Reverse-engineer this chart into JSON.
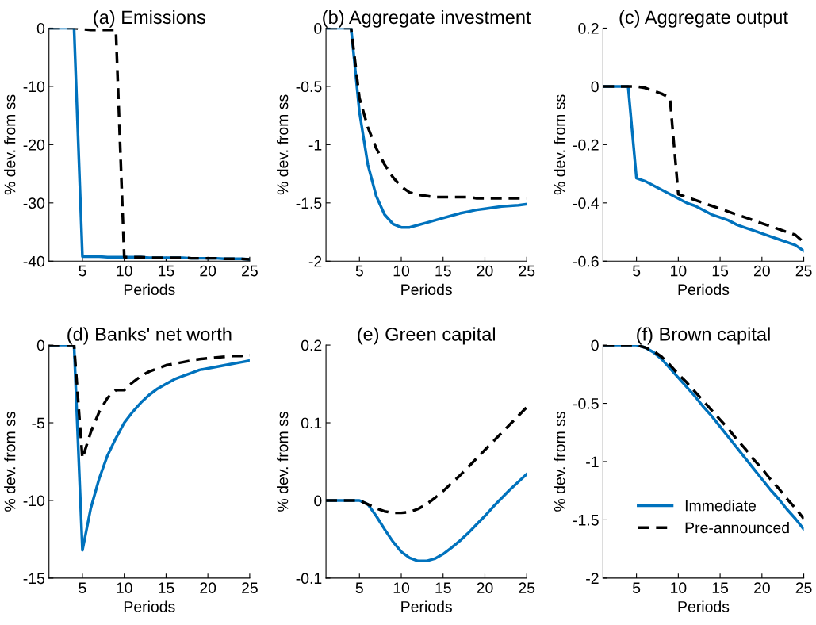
{
  "chart_data": [
    {
      "type": "line",
      "title": "(a) Emissions",
      "xlabel": "Periods",
      "ylabel": "% dev. from ss",
      "x": [
        1,
        2,
        3,
        4,
        5,
        6,
        7,
        8,
        9,
        10,
        11,
        12,
        13,
        14,
        15,
        16,
        17,
        18,
        19,
        20,
        21,
        22,
        23,
        24,
        25
      ],
      "xlim": [
        1,
        25
      ],
      "xticks": [
        5,
        10,
        15,
        20,
        25
      ],
      "ylim": [
        -40,
        0
      ],
      "yticks": [
        -40,
        -30,
        -20,
        -10,
        0
      ],
      "legend": false,
      "series": [
        {
          "color": "#0072bd",
          "line_style": "solid",
          "values": [
            0,
            0,
            0,
            0,
            -39.2,
            -39.2,
            -39.2,
            -39.3,
            -39.3,
            -39.3,
            -39.3,
            -39.3,
            -39.4,
            -39.4,
            -39.4,
            -39.4,
            -39.4,
            -39.5,
            -39.5,
            -39.5,
            -39.5,
            -39.6,
            -39.6,
            -39.6,
            -39.7
          ]
        },
        {
          "color": "#000000",
          "line_style": "dashed",
          "values": [
            0,
            0,
            0,
            0,
            -0.2,
            -0.3,
            -0.3,
            -0.3,
            -0.3,
            -39.3,
            -39.3,
            -39.3,
            -39.4,
            -39.4,
            -39.4,
            -39.4,
            -39.4,
            -39.5,
            -39.5,
            -39.5,
            -39.5,
            -39.6,
            -39.6,
            -39.6,
            -39.7
          ]
        }
      ]
    },
    {
      "type": "line",
      "title": "(b) Aggregate investment",
      "xlabel": "Periods",
      "ylabel": "% dev. from ss",
      "x": [
        1,
        2,
        3,
        4,
        5,
        6,
        7,
        8,
        9,
        10,
        11,
        12,
        13,
        14,
        15,
        16,
        17,
        18,
        19,
        20,
        21,
        22,
        23,
        24,
        25
      ],
      "xlim": [
        1,
        25
      ],
      "xticks": [
        5,
        10,
        15,
        20,
        25
      ],
      "ylim": [
        -2,
        0
      ],
      "yticks": [
        -2,
        -1.5,
        -1,
        -0.5,
        0
      ],
      "legend": false,
      "series": [
        {
          "color": "#0072bd",
          "line_style": "solid",
          "values": [
            0,
            0,
            0,
            0,
            -0.72,
            -1.17,
            -1.44,
            -1.6,
            -1.68,
            -1.71,
            -1.71,
            -1.69,
            -1.67,
            -1.65,
            -1.63,
            -1.61,
            -1.59,
            -1.575,
            -1.56,
            -1.55,
            -1.54,
            -1.53,
            -1.525,
            -1.52,
            -1.51
          ]
        },
        {
          "color": "#000000",
          "line_style": "dashed",
          "values": [
            0,
            0,
            0,
            0,
            -0.6,
            -0.85,
            -1.03,
            -1.17,
            -1.28,
            -1.36,
            -1.41,
            -1.43,
            -1.44,
            -1.45,
            -1.45,
            -1.45,
            -1.45,
            -1.45,
            -1.46,
            -1.46,
            -1.46,
            -1.46,
            -1.46,
            -1.46,
            -1.46
          ]
        }
      ]
    },
    {
      "type": "line",
      "title": "(c) Aggregate output",
      "xlabel": "Periods",
      "ylabel": "% dev. from ss",
      "x": [
        1,
        2,
        3,
        4,
        5,
        6,
        7,
        8,
        9,
        10,
        11,
        12,
        13,
        14,
        15,
        16,
        17,
        18,
        19,
        20,
        21,
        22,
        23,
        24,
        25
      ],
      "xlim": [
        1,
        25
      ],
      "xticks": [
        5,
        10,
        15,
        20,
        25
      ],
      "ylim": [
        -0.6,
        0.2
      ],
      "yticks": [
        -0.6,
        -0.4,
        -0.2,
        0,
        0.2
      ],
      "legend": false,
      "series": [
        {
          "color": "#0072bd",
          "line_style": "solid",
          "values": [
            0,
            0,
            0,
            0,
            -0.315,
            -0.325,
            -0.34,
            -0.355,
            -0.37,
            -0.385,
            -0.4,
            -0.41,
            -0.425,
            -0.44,
            -0.45,
            -0.46,
            -0.475,
            -0.485,
            -0.495,
            -0.505,
            -0.515,
            -0.525,
            -0.535,
            -0.545,
            -0.565
          ]
        },
        {
          "color": "#000000",
          "line_style": "dashed",
          "values": [
            0,
            0,
            0,
            0,
            0,
            -0.005,
            -0.015,
            -0.025,
            -0.04,
            -0.37,
            -0.38,
            -0.39,
            -0.4,
            -0.41,
            -0.42,
            -0.43,
            -0.44,
            -0.45,
            -0.46,
            -0.47,
            -0.48,
            -0.49,
            -0.5,
            -0.51,
            -0.535
          ]
        }
      ]
    },
    {
      "type": "line",
      "title": "(d) Banks' net worth",
      "xlabel": "Periods",
      "ylabel": "% dev. from ss",
      "x": [
        1,
        2,
        3,
        4,
        5,
        6,
        7,
        8,
        9,
        10,
        11,
        12,
        13,
        14,
        15,
        16,
        17,
        18,
        19,
        20,
        21,
        22,
        23,
        24,
        25
      ],
      "xlim": [
        1,
        25
      ],
      "xticks": [
        5,
        10,
        15,
        20,
        25
      ],
      "ylim": [
        -15,
        0
      ],
      "yticks": [
        -15,
        -10,
        -5,
        0
      ],
      "legend": false,
      "series": [
        {
          "color": "#0072bd",
          "line_style": "solid",
          "values": [
            0,
            0,
            0,
            0,
            -13.2,
            -10.5,
            -8.6,
            -7.1,
            -6.0,
            -5.0,
            -4.3,
            -3.7,
            -3.2,
            -2.8,
            -2.5,
            -2.2,
            -2.0,
            -1.8,
            -1.6,
            -1.5,
            -1.4,
            -1.3,
            -1.2,
            -1.1,
            -1.0
          ]
        },
        {
          "color": "#000000",
          "line_style": "dashed",
          "values": [
            0,
            0,
            0,
            0,
            -7.3,
            -5.6,
            -4.3,
            -3.4,
            -2.9,
            -2.9,
            -2.4,
            -2.0,
            -1.7,
            -1.5,
            -1.3,
            -1.2,
            -1.1,
            -1.0,
            -0.9,
            -0.85,
            -0.8,
            -0.75,
            -0.7,
            -0.7,
            -0.65
          ]
        }
      ]
    },
    {
      "type": "line",
      "title": "(e) Green capital",
      "xlabel": "Periods",
      "ylabel": "% dev. from ss",
      "x": [
        1,
        2,
        3,
        4,
        5,
        6,
        7,
        8,
        9,
        10,
        11,
        12,
        13,
        14,
        15,
        16,
        17,
        18,
        19,
        20,
        21,
        22,
        23,
        24,
        25
      ],
      "xlim": [
        1,
        25
      ],
      "xticks": [
        5,
        10,
        15,
        20,
        25
      ],
      "ylim": [
        -0.1,
        0.2
      ],
      "yticks": [
        -0.1,
        0,
        0.1,
        0.2
      ],
      "legend": false,
      "series": [
        {
          "color": "#0072bd",
          "line_style": "solid",
          "values": [
            0,
            0,
            0,
            0,
            0,
            -0.005,
            -0.02,
            -0.037,
            -0.053,
            -0.066,
            -0.074,
            -0.078,
            -0.078,
            -0.075,
            -0.069,
            -0.061,
            -0.052,
            -0.042,
            -0.031,
            -0.02,
            -0.008,
            0.003,
            0.014,
            0.024,
            0.034
          ]
        },
        {
          "color": "#000000",
          "line_style": "dashed",
          "values": [
            0,
            0,
            0,
            0,
            0,
            -0.005,
            -0.01,
            -0.014,
            -0.016,
            -0.016,
            -0.015,
            -0.011,
            -0.005,
            0.003,
            0.012,
            0.022,
            0.032,
            0.043,
            0.054,
            0.065,
            0.076,
            0.087,
            0.098,
            0.109,
            0.12
          ]
        }
      ]
    },
    {
      "type": "line",
      "title": "(f) Brown capital",
      "xlabel": "Periods",
      "ylabel": "% dev. from ss",
      "x": [
        1,
        2,
        3,
        4,
        5,
        6,
        7,
        8,
        9,
        10,
        11,
        12,
        13,
        14,
        15,
        16,
        17,
        18,
        19,
        20,
        21,
        22,
        23,
        24,
        25
      ],
      "xlim": [
        1,
        25
      ],
      "xticks": [
        5,
        10,
        15,
        20,
        25
      ],
      "ylim": [
        -2,
        0
      ],
      "yticks": [
        -2,
        -1.5,
        -1,
        -0.5,
        0
      ],
      "legend": "bottom right",
      "series": [
        {
          "name": "Immediate",
          "color": "#0072bd",
          "line_style": "solid",
          "values": [
            0,
            0,
            0,
            0,
            0,
            -0.02,
            -0.06,
            -0.12,
            -0.2,
            -0.28,
            -0.36,
            -0.44,
            -0.53,
            -0.61,
            -0.7,
            -0.79,
            -0.88,
            -0.97,
            -1.06,
            -1.15,
            -1.24,
            -1.32,
            -1.41,
            -1.49,
            -1.58
          ]
        },
        {
          "name": "Pre-announced",
          "color": "#000000",
          "line_style": "dashed",
          "values": [
            0,
            0,
            0,
            0,
            0,
            -0.02,
            -0.05,
            -0.1,
            -0.17,
            -0.25,
            -0.32,
            -0.4,
            -0.48,
            -0.56,
            -0.64,
            -0.72,
            -0.81,
            -0.89,
            -0.98,
            -1.06,
            -1.15,
            -1.23,
            -1.32,
            -1.4,
            -1.49
          ]
        }
      ]
    }
  ]
}
